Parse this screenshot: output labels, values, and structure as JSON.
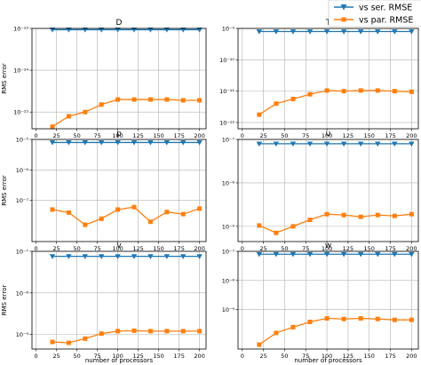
{
  "legend": {
    "items": [
      {
        "label": "vs ser. RMSE",
        "color": "#1f77b4",
        "marker": "triangle-down"
      },
      {
        "label": "vs par. RMSE",
        "color": "#ff7f0e",
        "marker": "square"
      }
    ]
  },
  "x_ticks": [
    "0",
    "25",
    "50",
    "75",
    "100",
    "125",
    "150",
    "175",
    "200"
  ],
  "chart_data": [
    {
      "type": "line",
      "title": "D",
      "xlabel": "",
      "ylabel": "RMS error",
      "yscale": "log",
      "ylim_exp": [
        -15.4,
        -13.0
      ],
      "xlim": [
        -5,
        208
      ],
      "ytick_labels": [
        {
          "exp": -13,
          "label": "10⁻¹³"
        },
        {
          "exp": -14,
          "label": "10⁻¹⁴"
        },
        {
          "exp": -15,
          "label": "10⁻¹⁵"
        }
      ],
      "grid": true,
      "x": [
        20,
        40,
        60,
        80,
        100,
        120,
        140,
        160,
        180,
        200
      ],
      "series": [
        {
          "name": "vs ser. RMSE",
          "color": "#1f77b4",
          "log10_values": [
            -13.03,
            -13.03,
            -13.03,
            -13.03,
            -13.03,
            -13.03,
            -13.03,
            -13.03,
            -13.03,
            -13.03
          ]
        },
        {
          "name": "vs par. RMSE",
          "color": "#ff7f0e",
          "log10_values": [
            -15.35,
            -15.1,
            -15.0,
            -14.82,
            -14.7,
            -14.7,
            -14.7,
            -14.7,
            -14.72,
            -14.72
          ]
        }
      ]
    },
    {
      "type": "line",
      "title": "T",
      "xlabel": "",
      "ylabel": "",
      "yscale": "log",
      "ylim_exp": [
        -12.2,
        -9.0
      ],
      "xlim": [
        -5,
        208
      ],
      "ytick_labels": [
        {
          "exp": -9,
          "label": "10⁻⁹"
        },
        {
          "exp": -10,
          "label": "10⁻¹⁰"
        },
        {
          "exp": -11,
          "label": "10⁻¹¹"
        },
        {
          "exp": -12,
          "label": "10⁻¹²"
        }
      ],
      "grid": true,
      "x": [
        20,
        40,
        60,
        80,
        100,
        120,
        140,
        160,
        180,
        200
      ],
      "series": [
        {
          "name": "vs ser. RMSE",
          "color": "#1f77b4",
          "log10_values": [
            -9.1,
            -9.1,
            -9.1,
            -9.1,
            -9.1,
            -9.1,
            -9.1,
            -9.1,
            -9.1,
            -9.1
          ]
        },
        {
          "name": "vs par. RMSE",
          "color": "#ff7f0e",
          "log10_values": [
            -11.75,
            -11.4,
            -11.25,
            -11.1,
            -10.98,
            -11.0,
            -10.98,
            -10.98,
            -11.0,
            -11.02
          ]
        }
      ]
    },
    {
      "type": "line",
      "title": "p",
      "xlabel": "",
      "ylabel": "RMS error",
      "yscale": "log",
      "ylim_exp": [
        -8.35,
        -5.0
      ],
      "xlim": [
        -5,
        208
      ],
      "ytick_labels": [
        {
          "exp": -5,
          "label": "10⁻⁵"
        },
        {
          "exp": -6,
          "label": "10⁻⁶"
        },
        {
          "exp": -7,
          "label": "10⁻⁷"
        }
      ],
      "grid": true,
      "x": [
        20,
        40,
        60,
        80,
        100,
        120,
        140,
        160,
        180,
        200
      ],
      "series": [
        {
          "name": "vs ser. RMSE",
          "color": "#1f77b4",
          "log10_values": [
            -5.1,
            -5.1,
            -5.1,
            -5.1,
            -5.1,
            -5.1,
            -5.1,
            -5.1,
            -5.1,
            -5.1
          ]
        },
        {
          "name": "vs par. RMSE",
          "color": "#ff7f0e",
          "log10_values": [
            -7.3,
            -7.4,
            -7.8,
            -7.6,
            -7.3,
            -7.22,
            -7.7,
            -7.38,
            -7.45,
            -7.27
          ]
        }
      ]
    },
    {
      "type": "line",
      "title": "u",
      "xlabel": "",
      "ylabel": "",
      "yscale": "log",
      "ylim_exp": [
        -9.35,
        -7.0
      ],
      "xlim": [
        -5,
        208
      ],
      "ytick_labels": [
        {
          "exp": -7,
          "label": "10⁻⁷"
        },
        {
          "exp": -8,
          "label": "10⁻⁸"
        },
        {
          "exp": -9,
          "label": "10⁻⁹"
        }
      ],
      "grid": true,
      "x": [
        20,
        40,
        60,
        80,
        100,
        120,
        140,
        160,
        180,
        200
      ],
      "series": [
        {
          "name": "vs ser. RMSE",
          "color": "#1f77b4",
          "log10_values": [
            -7.1,
            -7.1,
            -7.1,
            -7.1,
            -7.1,
            -7.1,
            -7.1,
            -7.1,
            -7.1,
            -7.1
          ]
        },
        {
          "name": "vs par. RMSE",
          "color": "#ff7f0e",
          "log10_values": [
            -8.98,
            -9.15,
            -9.0,
            -8.85,
            -8.72,
            -8.74,
            -8.78,
            -8.74,
            -8.76,
            -8.72
          ]
        }
      ]
    },
    {
      "type": "line",
      "title": "v",
      "xlabel": "number of processors",
      "ylabel": "RMS error",
      "yscale": "log",
      "ylim_exp": [
        -9.35,
        -7.0
      ],
      "xlim": [
        -5,
        208
      ],
      "ytick_labels": [
        {
          "exp": -7,
          "label": "10⁻⁷"
        },
        {
          "exp": -8,
          "label": "10⁻⁸"
        },
        {
          "exp": -9,
          "label": "10⁻⁹"
        }
      ],
      "grid": true,
      "x": [
        20,
        40,
        60,
        80,
        100,
        120,
        140,
        160,
        180,
        200
      ],
      "series": [
        {
          "name": "vs ser. RMSE",
          "color": "#1f77b4",
          "log10_values": [
            -7.12,
            -7.12,
            -7.12,
            -7.12,
            -7.12,
            -7.12,
            -7.12,
            -7.12,
            -7.12,
            -7.12
          ]
        },
        {
          "name": "vs par. RMSE",
          "color": "#ff7f0e",
          "log10_values": [
            -9.18,
            -9.2,
            -9.1,
            -8.98,
            -8.92,
            -8.91,
            -8.92,
            -8.92,
            -8.92,
            -8.92
          ]
        }
      ]
    },
    {
      "type": "line",
      "title": "w",
      "xlabel": "number of processors",
      "ylabel": "",
      "yscale": "log",
      "ylim_exp": [
        -10.35,
        -7.0
      ],
      "xlim": [
        -5,
        208
      ],
      "ytick_labels": [
        {
          "exp": -7,
          "label": "10⁻⁷"
        },
        {
          "exp": -8,
          "label": "10⁻⁸"
        },
        {
          "exp": -9,
          "label": "10⁻⁹"
        }
      ],
      "grid": true,
      "x": [
        20,
        40,
        60,
        80,
        100,
        120,
        140,
        160,
        180,
        200
      ],
      "series": [
        {
          "name": "vs ser. RMSE",
          "color": "#1f77b4",
          "log10_values": [
            -7.1,
            -7.1,
            -7.1,
            -7.1,
            -7.1,
            -7.1,
            -7.1,
            -7.1,
            -7.1,
            -7.1
          ]
        },
        {
          "name": "vs par. RMSE",
          "color": "#ff7f0e",
          "log10_values": [
            -10.2,
            -9.8,
            -9.6,
            -9.42,
            -9.3,
            -9.32,
            -9.3,
            -9.32,
            -9.35,
            -9.35
          ]
        }
      ]
    }
  ]
}
